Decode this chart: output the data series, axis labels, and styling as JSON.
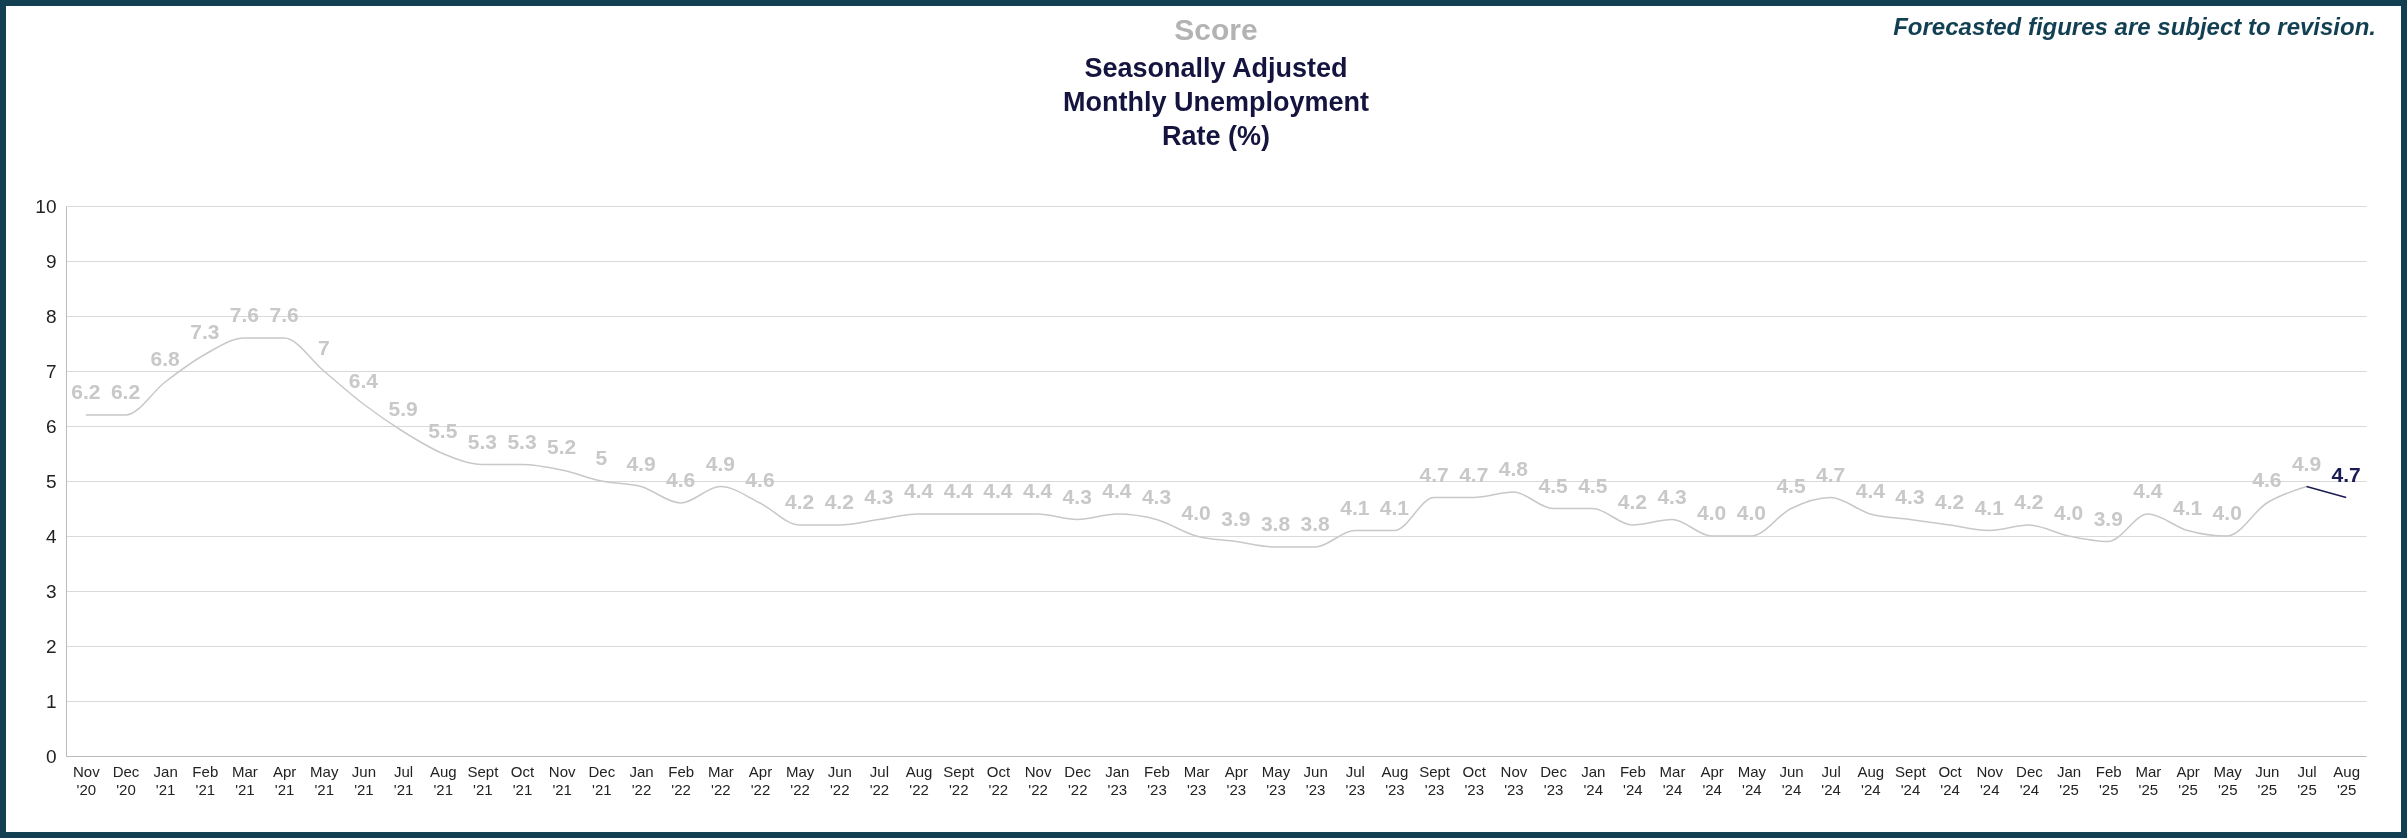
{
  "chart_data": {
    "type": "line",
    "title": "Seasonally Adjusted Monthly Unemployment Rate (%)",
    "annotations": [
      "Score",
      "Forecasted figures are subject to revision."
    ],
    "categories": [
      "Nov '20",
      "Dec '20",
      "Jan '21",
      "Feb '21",
      "Mar '21",
      "Apr '21",
      "May '21",
      "Jun '21",
      "Jul '21",
      "Aug '21",
      "Sept '21",
      "Oct '21",
      "Nov '21",
      "Dec '21",
      "Jan '22",
      "Feb '22",
      "Mar '22",
      "Apr '22",
      "May '22",
      "Jun '22",
      "Jul '22",
      "Aug '22",
      "Sept '22",
      "Oct '22",
      "Nov '22",
      "Dec '22",
      "Jan '23",
      "Feb '23",
      "Mar '23",
      "Apr '23",
      "May '23",
      "Jun '23",
      "Jul '23",
      "Aug '23",
      "Sept '23",
      "Oct '23",
      "Nov '23",
      "Dec '23",
      "Jan '24",
      "Feb '24",
      "Mar '24",
      "Apr '24",
      "May '24",
      "Jun '24",
      "Jul '24",
      "Aug '24",
      "Sept '24",
      "Oct '24",
      "Nov '24",
      "Dec '24",
      "Jan '25",
      "Feb '25",
      "Mar '25",
      "Apr '25",
      "May '25",
      "Jun '25",
      "Jul '25",
      "Aug '25"
    ],
    "series": [
      {
        "color": "#c8c8c8",
        "values": [
          6.2,
          6.2,
          6.8,
          7.3,
          7.6,
          7.6,
          7,
          6.4,
          5.9,
          5.5,
          5.3,
          5.3,
          5.2,
          5,
          4.9,
          4.6,
          4.9,
          4.6,
          4.2,
          4.2,
          4.3,
          4.4,
          4.4,
          4.4,
          4.4,
          4.3,
          4.4,
          4.3,
          4.0,
          3.9,
          3.8,
          3.8,
          4.1,
          4.1,
          4.7,
          4.7,
          4.8,
          4.5,
          4.5,
          4.2,
          4.3,
          4.0,
          4.0,
          4.5,
          4.7,
          4.4,
          4.3,
          4.2,
          4.1,
          4.2,
          4.0,
          3.9,
          4.4,
          4.1,
          4.0,
          4.6,
          4.9,
          null
        ],
        "value_labels": [
          "6.2",
          "6.2",
          "6.8",
          "7.3",
          "7.6",
          "7.6",
          "7",
          "6.4",
          "5.9",
          "5.5",
          "5.3",
          "5.3",
          "5.2",
          "5",
          "4.9",
          "4.6",
          "4.9",
          "4.6",
          "4.2",
          "4.2",
          "4.3",
          "4.4",
          "4.4",
          "4.4",
          "4.4",
          "4.3",
          "4.4",
          "4.3",
          "4.0",
          "3.9",
          "3.8",
          "3.8",
          "4.1",
          "4.1",
          "4.7",
          "4.7",
          "4.8",
          "4.5",
          "4.5",
          "4.2",
          "4.3",
          "4.0",
          "4.0",
          "4.5",
          "4.7",
          "4.4",
          "4.3",
          "4.2",
          "4.1",
          "4.2",
          "4.0",
          "3.9",
          "4.4",
          "4.1",
          "4.0",
          "4.6",
          "4.9",
          null
        ]
      },
      {
        "color": "#1c1c54",
        "values": [
          null,
          null,
          null,
          null,
          null,
          null,
          null,
          null,
          null,
          null,
          null,
          null,
          null,
          null,
          null,
          null,
          null,
          null,
          null,
          null,
          null,
          null,
          null,
          null,
          null,
          null,
          null,
          null,
          null,
          null,
          null,
          null,
          null,
          null,
          null,
          null,
          null,
          null,
          null,
          null,
          null,
          null,
          null,
          null,
          null,
          null,
          null,
          null,
          null,
          null,
          null,
          null,
          null,
          null,
          null,
          null,
          4.9,
          4.7
        ],
        "value_labels": [
          null,
          null,
          null,
          null,
          null,
          null,
          null,
          null,
          null,
          null,
          null,
          null,
          null,
          null,
          null,
          null,
          null,
          null,
          null,
          null,
          null,
          null,
          null,
          null,
          null,
          null,
          null,
          null,
          null,
          null,
          null,
          null,
          null,
          null,
          null,
          null,
          null,
          null,
          null,
          null,
          null,
          null,
          null,
          null,
          null,
          null,
          null,
          null,
          null,
          null,
          null,
          null,
          null,
          null,
          null,
          null,
          null,
          "4.7"
        ]
      }
    ],
    "ylim": [
      0,
      10
    ],
    "yticks": [
      0,
      1,
      2,
      3,
      4,
      5,
      6,
      7,
      8,
      9,
      10
    ],
    "grid": "y"
  }
}
